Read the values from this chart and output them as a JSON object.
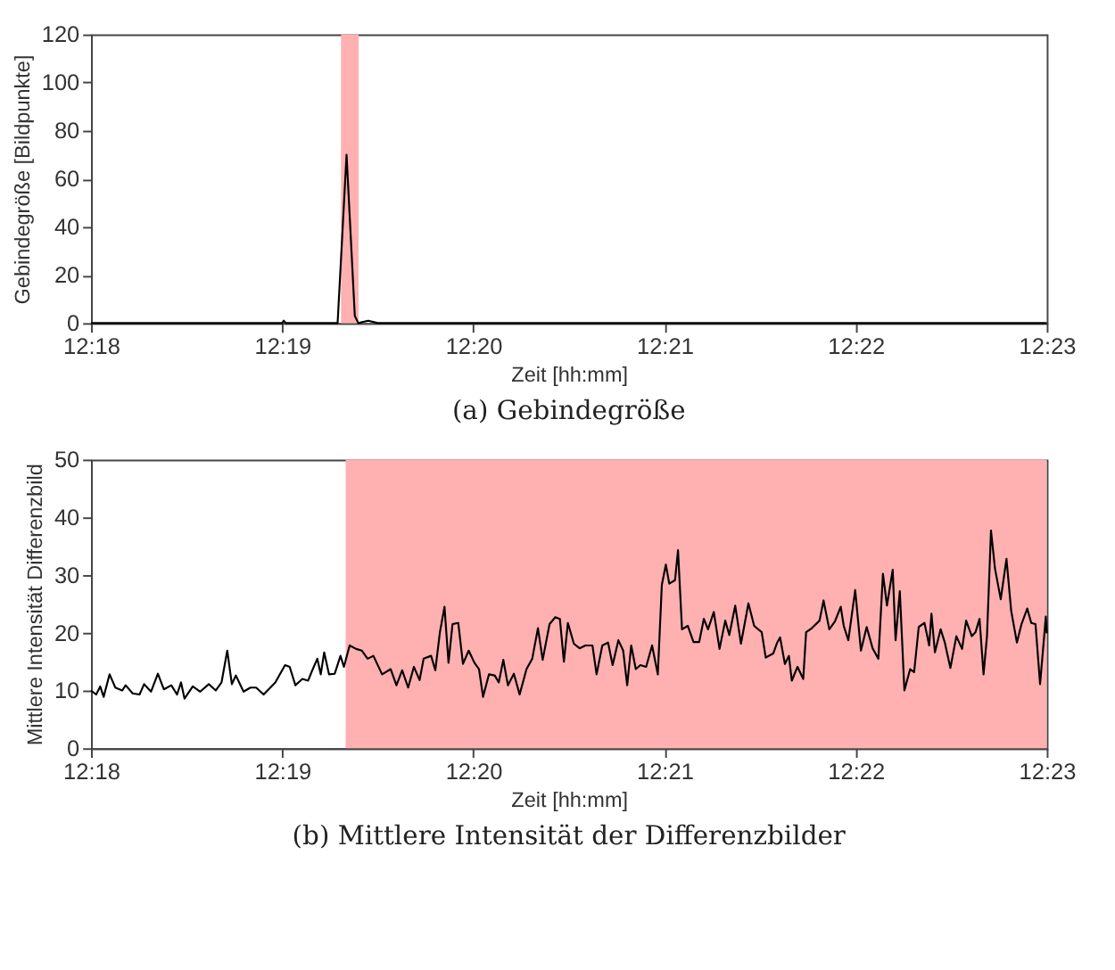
{
  "chart_data": [
    {
      "type": "line",
      "title": "(a) Gebindegröße",
      "xlabel": "Zeit [hh:mm]",
      "ylabel": "Gebindegröße [Bildpunkte]",
      "x": [
        12.3,
        12.31667,
        12.3168,
        12.317,
        12.3215,
        12.32228,
        12.323,
        12.3233,
        12.32417,
        12.325,
        12.38333
      ],
      "series": [
        {
          "color": "#000000",
          "values": [
            0,
            0,
            1,
            0,
            0,
            70,
            3,
            0,
            1,
            0,
            0
          ]
        }
      ],
      "xlim": [
        12.3,
        12.38333
      ],
      "ylim": [
        0,
        120
      ],
      "xticks": [
        {
          "value": 12.3,
          "label": "12:18"
        },
        {
          "value": 12.31667,
          "label": "12:19"
        },
        {
          "value": 12.33333,
          "label": "12:20"
        },
        {
          "value": 12.35,
          "label": "12:21"
        },
        {
          "value": 12.36667,
          "label": "12:22"
        },
        {
          "value": 12.38333,
          "label": "12:23"
        }
      ],
      "yticks": [
        0,
        20,
        40,
        60,
        80,
        100,
        120
      ],
      "bands": [
        {
          "axis": "x",
          "from": 12.3218,
          "to": 12.32333,
          "color": "#ffb0b0"
        }
      ],
      "grid": false,
      "line_style": "solid",
      "marker": "none"
    },
    {
      "type": "line",
      "title": "(b) Mittlere Intensität der Differenzbilder",
      "xlabel": "Zeit [hh:mm]",
      "ylabel": "Mittlere Intensität Differenzbild",
      "x": [
        12.3,
        12.30045,
        12.3008,
        12.3011,
        12.30162,
        12.30212,
        12.30272,
        12.30302,
        12.30363,
        12.30423,
        12.30463,
        12.30523,
        12.30583,
        12.30635,
        12.307,
        12.3075,
        12.30785,
        12.30815,
        12.30887,
        12.30952,
        12.31027,
        12.31088,
        12.31138,
        12.31188,
        12.31228,
        12.31263,
        12.3133,
        12.3139,
        12.3144,
        12.31505,
        12.31607,
        12.31692,
        12.31732,
        12.31782,
        12.31843,
        12.31893,
        12.31923,
        12.31973,
        12.32003,
        12.32033,
        12.32075,
        12.32125,
        12.32175,
        12.32205,
        12.32255,
        12.32312,
        12.32362,
        12.32412,
        12.32462,
        12.32538,
        12.32613,
        12.32663,
        12.32713,
        12.32765,
        12.32815,
        12.32865,
        12.329,
        12.32965,
        12.33002,
        12.33042,
        12.33082,
        12.33117,
        12.33152,
        12.33202,
        12.33243,
        12.33293,
        12.33343,
        12.33383,
        12.33418,
        12.3347,
        12.3352,
        12.33555,
        12.33595,
        12.33635,
        12.33687,
        12.33737,
        12.33797,
        12.33847,
        12.33897,
        12.33938,
        12.33998,
        12.34048,
        12.34088,
        12.34123,
        12.34158,
        12.3421,
        12.3426,
        12.3431,
        12.34372,
        12.34408,
        12.34458,
        12.34508,
        12.34548,
        12.34598,
        12.3464,
        12.34675,
        12.3471,
        12.3475,
        12.3479,
        12.3484,
        12.34892,
        12.34942,
        12.34977,
        12.35012,
        12.35042,
        12.35092,
        12.35118,
        12.35153,
        12.35203,
        12.35253,
        12.35303,
        12.35343,
        12.3538,
        12.3543,
        12.3548,
        12.3553,
        12.35565,
        12.35617,
        12.35667,
        12.35732,
        12.35782,
        12.35848,
        12.35883,
        12.35948,
        12.35983,
        12.36008,
        12.3605,
        12.36085,
        12.3611,
        12.3616,
        12.3621,
        12.36235,
        12.36285,
        12.36352,
        12.36387,
        12.36437,
        12.36487,
        12.36537,
        12.36563,
        12.36603,
        12.36663,
        12.36713,
        12.36763,
        12.36815,
        12.36865,
        12.36905,
        12.3694,
        12.3699,
        12.37015,
        12.37052,
        12.37092,
        12.37142,
        12.37177,
        12.37217,
        12.37267,
        12.37308,
        12.37328,
        12.37358,
        12.37408,
        12.37443,
        12.37493,
        12.37545,
        12.37595,
        12.3763,
        12.3768,
        12.37712,
        12.37747,
        12.37782,
        12.37812,
        12.37847,
        12.37882,
        12.37932,
        12.37982,
        12.38023,
        12.38073,
        12.38113,
        12.38163,
        12.38198,
        12.38235,
        12.38275,
        12.38325,
        12.38333
      ],
      "series": [
        {
          "color": "#000000",
          "values": [
            10.0,
            9.3,
            10.7,
            8.9,
            12.8,
            10.5,
            10.0,
            10.9,
            9.5,
            9.3,
            11.1,
            9.8,
            12.9,
            10.2,
            10.9,
            9.3,
            11.4,
            8.6,
            10.7,
            9.8,
            11.1,
            10.0,
            11.4,
            16.9,
            11.1,
            12.6,
            9.8,
            10.5,
            10.5,
            9.3,
            11.4,
            14.4,
            14.1,
            10.9,
            12.0,
            11.7,
            13.2,
            15.5,
            12.8,
            16.6,
            12.8,
            12.9,
            16.0,
            14.1,
            17.8,
            17.2,
            16.9,
            15.5,
            16.0,
            12.8,
            13.7,
            10.9,
            13.5,
            10.5,
            14.1,
            11.8,
            15.5,
            16.0,
            13.5,
            20.1,
            24.5,
            14.8,
            21.5,
            21.7,
            14.6,
            16.9,
            14.8,
            13.7,
            8.9,
            12.8,
            12.6,
            11.4,
            15.3,
            10.9,
            12.9,
            9.3,
            13.7,
            15.5,
            20.8,
            15.3,
            21.5,
            22.7,
            22.4,
            15.0,
            21.7,
            18.1,
            17.3,
            17.8,
            17.8,
            12.8,
            17.8,
            18.3,
            14.4,
            18.7,
            16.9,
            10.9,
            17.8,
            13.7,
            14.4,
            14.1,
            17.8,
            12.8,
            28.3,
            31.8,
            28.5,
            29.1,
            34.3,
            20.6,
            21.2,
            18.4,
            18.4,
            22.4,
            20.6,
            23.6,
            17.2,
            22.1,
            19.6,
            24.7,
            18.1,
            25.1,
            21.2,
            20.1,
            15.7,
            16.4,
            18.3,
            19.2,
            14.6,
            16.0,
            11.7,
            14.1,
            12.0,
            20.1,
            20.8,
            22.1,
            25.6,
            20.6,
            22.0,
            24.5,
            21.2,
            18.7,
            27.4,
            16.9,
            21.0,
            17.3,
            15.5,
            30.2,
            24.7,
            30.9,
            18.7,
            27.2,
            10.0,
            13.7,
            13.2,
            21.0,
            21.7,
            17.8,
            23.3,
            16.6,
            20.6,
            18.4,
            13.9,
            19.4,
            17.2,
            22.1,
            19.4,
            20.1,
            22.4,
            12.8,
            19.4,
            37.7,
            31.1,
            25.8,
            32.8,
            23.8,
            18.3,
            21.5,
            24.2,
            21.7,
            21.5,
            11.1,
            22.8,
            19.9
          ]
        }
      ],
      "xlim": [
        12.3,
        12.38333
      ],
      "ylim": [
        0,
        50
      ],
      "xticks": [
        {
          "value": 12.3,
          "label": "12:18"
        },
        {
          "value": 12.31667,
          "label": "12:19"
        },
        {
          "value": 12.33333,
          "label": "12:20"
        },
        {
          "value": 12.35,
          "label": "12:21"
        },
        {
          "value": 12.36667,
          "label": "12:22"
        },
        {
          "value": 12.38333,
          "label": "12:23"
        }
      ],
      "yticks": [
        0,
        10,
        20,
        30,
        40,
        50
      ],
      "bands": [
        {
          "axis": "x",
          "from": 12.3222,
          "to": 12.38333,
          "color": "#ffb0b0"
        }
      ],
      "grid": false,
      "line_style": "solid",
      "marker": "none"
    }
  ]
}
